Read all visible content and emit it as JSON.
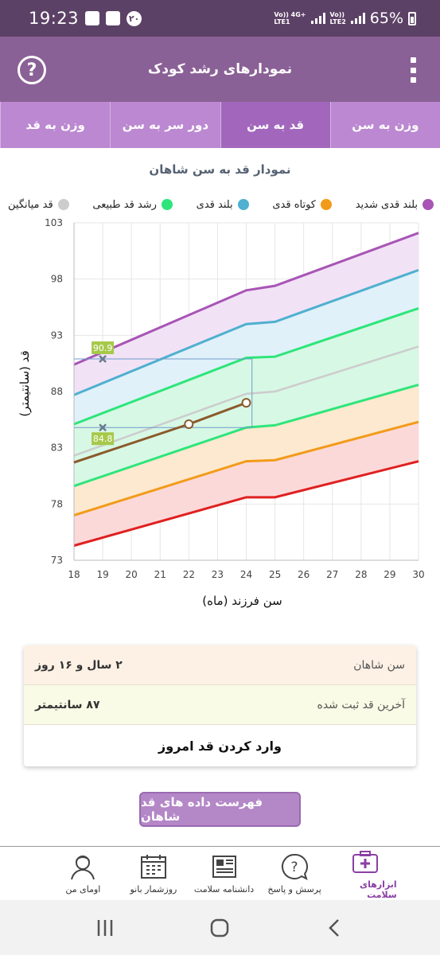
{
  "status_bar": {
    "time": "19:23",
    "notification_count": "۲۰",
    "net1": "LTE1",
    "net2": "LTE2",
    "net_tag1": "Vo)) 4G+",
    "net_tag2": "Vo))",
    "battery": "65%"
  },
  "app_bar": {
    "title": "نمودارهای رشد کودک",
    "help_icon": "help-circle-icon",
    "menu_icon": "more-vertical-icon"
  },
  "tabs": [
    {
      "label": "وزن به سن",
      "active": false
    },
    {
      "label": "قد به سن",
      "active": true
    },
    {
      "label": "دور سر به سن",
      "active": false
    },
    {
      "label": "وزن به قد",
      "active": false
    }
  ],
  "chart_title": "نمودار قد به سن شاهان",
  "legend": [
    {
      "label": "بلند قدی شدید",
      "color": "#a855b5"
    },
    {
      "label": "کوتاه قدی",
      "color": "#f29b1a"
    },
    {
      "label": "بلند قدی",
      "color": "#4fb0cf"
    },
    {
      "label": "رشد قد طبیعی",
      "color": "#2ee57a"
    },
    {
      "label": "قد میانگین",
      "color": "#cccccc"
    }
  ],
  "chart_data": {
    "type": "line",
    "ylabel": "قد (سانتیمتر)",
    "xlabel": "سن فرزند (ماه)",
    "xlim": [
      18,
      30
    ],
    "ylim": [
      73,
      103
    ],
    "x_ticks": [
      "18",
      "19",
      "20",
      "21",
      "22",
      "23",
      "24",
      "25",
      "26",
      "27",
      "28",
      "29",
      "30"
    ],
    "y_ticks": [
      "73",
      "78",
      "83",
      "88",
      "93",
      "98",
      "103"
    ],
    "x": [
      18,
      24,
      25,
      30
    ],
    "series": [
      {
        "name": "بلند قدی شدید",
        "color": "#a855b5",
        "values": [
          90.4,
          97.0,
          97.4,
          102.1
        ]
      },
      {
        "name": "بلند قدی",
        "color": "#4fb0cf",
        "values": [
          87.7,
          94.0,
          94.2,
          98.8
        ]
      },
      {
        "name": "رشد قد طبیعی",
        "color": "#2ee57a",
        "values": [
          85.1,
          91.0,
          91.1,
          95.4
        ]
      },
      {
        "name": "قد میانگین",
        "color": "#cccccc",
        "values": [
          82.3,
          87.8,
          88.0,
          92.0
        ]
      },
      {
        "values": [
          79.6,
          84.8,
          85.0,
          88.6
        ],
        "color": "#2ee57a"
      },
      {
        "name": "کوتاه قدی",
        "color": "#f29b1a",
        "values": [
          77.0,
          81.8,
          81.9,
          85.3
        ]
      },
      {
        "values": [
          74.3,
          78.6,
          78.6,
          81.8
        ],
        "color": "#e02020"
      }
    ],
    "child_series": {
      "x": [
        18,
        22,
        24
      ],
      "values": [
        81.7,
        85.1,
        87.0
      ],
      "color": "#8b5a2b"
    },
    "markers": [
      {
        "x": 19,
        "y": 90.9,
        "label": "90.9"
      },
      {
        "x": 19,
        "y": 84.8,
        "label": "84.8"
      }
    ],
    "grid": true
  },
  "info_card": {
    "age_label": "سن شاهان",
    "age_value": "۲ سال و ۱۶ روز",
    "last_height_label": "آخرین قد ثبت شده",
    "last_height_value": "۸۷ سانتیمتر",
    "action_label": "وارد کردن قد امروز"
  },
  "list_button": "فهرست داده های قد شاهان",
  "bottom_nav": [
    {
      "label": "ابزارهای سلامت",
      "icon": "medical-kit-icon",
      "active": true
    },
    {
      "label": "پرسش و پاسخ",
      "icon": "question-bubble-icon",
      "active": false
    },
    {
      "label": "دانشنامه سلامت",
      "icon": "newspaper-icon",
      "active": false
    },
    {
      "label": "روزشمار بانو",
      "icon": "calendar-icon",
      "active": false
    },
    {
      "label": "اومای من",
      "icon": "user-avatar-icon",
      "active": false
    }
  ]
}
